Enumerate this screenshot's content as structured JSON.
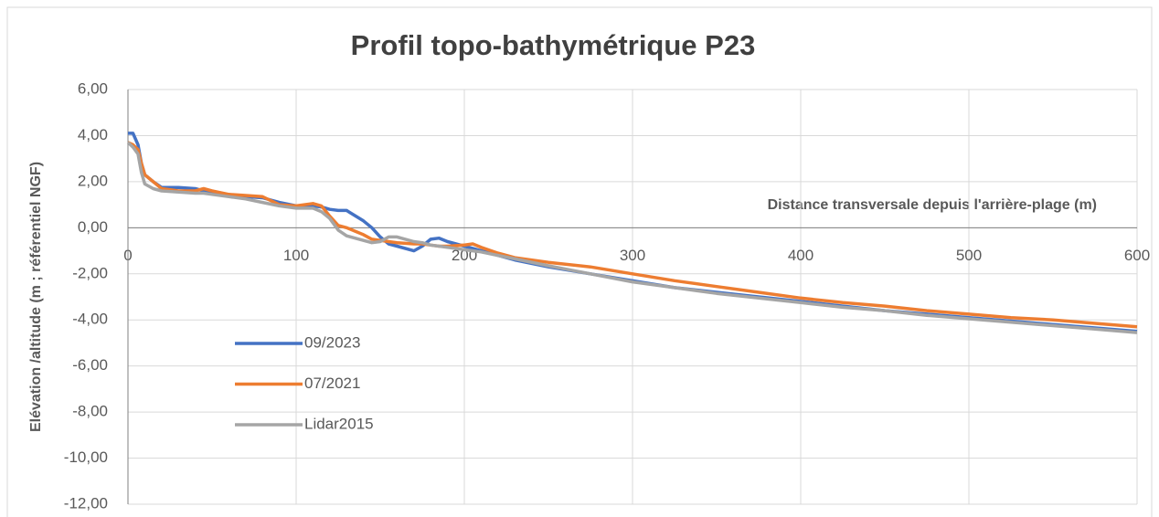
{
  "chart_data": {
    "type": "line",
    "title": "Profil topo-bathymétrique P23",
    "x_label": "Distance transversale depuis l'arrière-plage (m)",
    "y_label": "Elévation /altitude (m ; référentiel NGF)",
    "x": [
      0,
      3,
      6,
      8,
      10,
      15,
      20,
      30,
      40,
      45,
      50,
      60,
      70,
      80,
      90,
      100,
      110,
      115,
      120,
      125,
      130,
      140,
      145,
      150,
      155,
      160,
      170,
      175,
      180,
      185,
      190,
      200,
      205,
      210,
      220,
      230,
      250,
      275,
      300,
      325,
      350,
      375,
      400,
      425,
      450,
      475,
      500,
      525,
      550,
      575,
      600
    ],
    "series": [
      {
        "name": "09/2023",
        "color": "#4472c4",
        "values": [
          4.1,
          4.1,
          3.6,
          2.8,
          2.3,
          2.0,
          1.75,
          1.75,
          1.7,
          1.6,
          1.55,
          1.4,
          1.35,
          1.3,
          1.1,
          0.95,
          0.95,
          0.9,
          0.8,
          0.75,
          0.75,
          0.3,
          0.0,
          -0.4,
          -0.7,
          -0.8,
          -1.0,
          -0.8,
          -0.5,
          -0.45,
          -0.6,
          -0.8,
          -0.9,
          -1.0,
          -1.2,
          -1.4,
          -1.7,
          -2.0,
          -2.3,
          -2.6,
          -2.8,
          -3.0,
          -3.2,
          -3.4,
          -3.6,
          -3.75,
          -3.9,
          -4.05,
          -4.2,
          -4.35,
          -4.5
        ]
      },
      {
        "name": "07/2021",
        "color": "#ed7d31",
        "values": [
          3.7,
          3.6,
          3.4,
          2.8,
          2.3,
          2.0,
          1.7,
          1.6,
          1.6,
          1.7,
          1.6,
          1.45,
          1.4,
          1.35,
          1.0,
          0.95,
          1.05,
          0.95,
          0.5,
          0.1,
          0.0,
          -0.3,
          -0.5,
          -0.55,
          -0.6,
          -0.65,
          -0.7,
          -0.7,
          -0.75,
          -0.8,
          -0.8,
          -0.75,
          -0.7,
          -0.85,
          -1.1,
          -1.3,
          -1.5,
          -1.7,
          -2.0,
          -2.3,
          -2.55,
          -2.8,
          -3.05,
          -3.25,
          -3.4,
          -3.6,
          -3.75,
          -3.9,
          -4.0,
          -4.15,
          -4.3
        ]
      },
      {
        "name": "Lidar2015",
        "color": "#a5a5a5",
        "values": [
          3.7,
          3.5,
          3.2,
          2.4,
          1.9,
          1.7,
          1.6,
          1.55,
          1.5,
          1.5,
          1.45,
          1.35,
          1.25,
          1.1,
          0.95,
          0.85,
          0.85,
          0.7,
          0.4,
          -0.1,
          -0.35,
          -0.55,
          -0.65,
          -0.6,
          -0.4,
          -0.4,
          -0.6,
          -0.65,
          -0.75,
          -0.8,
          -0.85,
          -0.95,
          -1.0,
          -1.05,
          -1.2,
          -1.35,
          -1.65,
          -2.0,
          -2.35,
          -2.6,
          -2.85,
          -3.05,
          -3.25,
          -3.45,
          -3.6,
          -3.8,
          -3.95,
          -4.1,
          -4.25,
          -4.4,
          -4.55
        ]
      }
    ],
    "xlim": [
      0,
      600
    ],
    "xticks": [
      0,
      100,
      200,
      300,
      400,
      500,
      600
    ],
    "ylim": [
      -12,
      6
    ],
    "yticks": [
      {
        "value": -12,
        "label": "-12,00"
      },
      {
        "value": -10,
        "label": "-10,00"
      },
      {
        "value": -8,
        "label": "-8,00"
      },
      {
        "value": -6,
        "label": "-6,00"
      },
      {
        "value": -4,
        "label": "-4,00"
      },
      {
        "value": -2,
        "label": "-2,00"
      },
      {
        "value": 0,
        "label": "0,00"
      },
      {
        "value": 2,
        "label": "2,00"
      },
      {
        "value": 4,
        "label": "4,00"
      },
      {
        "value": 6,
        "label": "6,00"
      }
    ],
    "grid": true,
    "legend": "left"
  }
}
